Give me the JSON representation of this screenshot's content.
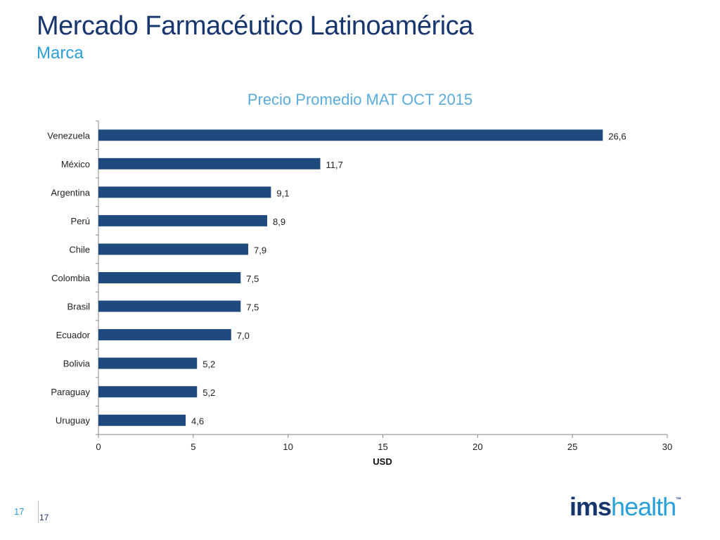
{
  "slide": {
    "title": "Mercado Farmacéutico Latinoamérica",
    "subtitle": "Marca",
    "page_left": "17",
    "page_right": "17"
  },
  "logo": {
    "part1": "ims",
    "part2": "health",
    "tm": "™"
  },
  "colors": {
    "bar": "#1f4a7e",
    "title": "#17366e",
    "accent": "#2aa0d8"
  },
  "chart_data": {
    "type": "bar",
    "orientation": "horizontal",
    "title": "Precio Promedio MAT OCT 2015",
    "xlabel": "USD",
    "ylabel": "",
    "xlim": [
      0,
      30
    ],
    "xticks": [
      0,
      5,
      10,
      15,
      20,
      25,
      30
    ],
    "categories": [
      "Venezuela",
      "México",
      "Argentina",
      "Perú",
      "Chile",
      "Colombia",
      "Brasil",
      "Ecuador",
      "Bolivia",
      "Paraguay",
      "Uruguay"
    ],
    "values": [
      26.6,
      11.7,
      9.1,
      8.9,
      7.9,
      7.5,
      7.5,
      7.0,
      5.2,
      5.2,
      4.6
    ],
    "value_labels": [
      "26,6",
      "11,7",
      "9,1",
      "8,9",
      "7,9",
      "7,5",
      "7,5",
      "7,0",
      "5,2",
      "5,2",
      "4,6"
    ],
    "grid": false,
    "legend": "none"
  }
}
